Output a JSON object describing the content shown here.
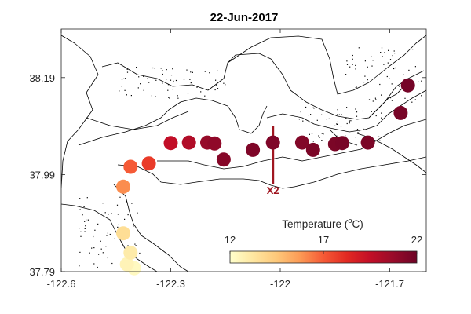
{
  "chart_data": {
    "type": "scatter",
    "title": "22-Jun-2017",
    "xlim": [
      -122.6,
      -121.6
    ],
    "ylim": [
      37.79,
      38.29
    ],
    "xticks": [
      -122.6,
      -122.3,
      -122,
      -121.7
    ],
    "xtick_labels": [
      "-122.6",
      "-122.3",
      "-122",
      "-121.7"
    ],
    "yticks": [
      37.79,
      37.99,
      38.19
    ],
    "ytick_labels": [
      "37.79",
      "37.99",
      "38.19"
    ],
    "grid": false,
    "points": [
      {
        "lon": -122.4,
        "lat": 37.797,
        "temp": 12.3
      },
      {
        "lon": -122.42,
        "lat": 37.805,
        "temp": 12.6
      },
      {
        "lon": -122.41,
        "lat": 37.829,
        "temp": 13.0
      },
      {
        "lon": -122.43,
        "lat": 37.869,
        "temp": 13.6
      },
      {
        "lon": -122.43,
        "lat": 37.965,
        "temp": 16.0
      },
      {
        "lon": -122.41,
        "lat": 38.006,
        "temp": 17.0
      },
      {
        "lon": -122.36,
        "lat": 38.013,
        "temp": 17.8
      },
      {
        "lon": -122.3,
        "lat": 38.055,
        "temp": 19.5
      },
      {
        "lon": -122.25,
        "lat": 38.056,
        "temp": 20.0
      },
      {
        "lon": -122.2,
        "lat": 38.056,
        "temp": 20.8
      },
      {
        "lon": -122.18,
        "lat": 38.054,
        "temp": 21.0
      },
      {
        "lon": -122.155,
        "lat": 38.021,
        "temp": 21.3
      },
      {
        "lon": -122.075,
        "lat": 38.041,
        "temp": 21.5
      },
      {
        "lon": -122.02,
        "lat": 38.056,
        "temp": 21.5
      },
      {
        "lon": -121.94,
        "lat": 38.056,
        "temp": 21.4
      },
      {
        "lon": -121.91,
        "lat": 38.041,
        "temp": 21.6
      },
      {
        "lon": -121.85,
        "lat": 38.053,
        "temp": 21.6
      },
      {
        "lon": -121.83,
        "lat": 38.055,
        "temp": 21.7
      },
      {
        "lon": -121.76,
        "lat": 38.056,
        "temp": 21.6
      },
      {
        "lon": -121.67,
        "lat": 38.117,
        "temp": 21.7
      },
      {
        "lon": -121.65,
        "lat": 38.174,
        "temp": 21.8
      }
    ],
    "annotation": {
      "text": "X2",
      "lon": -122.02,
      "lat_top": 38.09,
      "lat_bottom": 37.97,
      "color": "#a01620"
    },
    "colorbar": {
      "label": "Temperature (",
      "label_sup": "o",
      "label_end": "C)",
      "min": 12,
      "max": 22,
      "ticks": [
        12,
        17,
        22
      ],
      "tick_labels": [
        "12",
        "17",
        "22"
      ],
      "colormap": [
        "#ffffcc",
        "#fee6a0",
        "#fdc87a",
        "#fc9a55",
        "#f55a36",
        "#e22a22",
        "#c20e27",
        "#980b2a",
        "#6e0326"
      ]
    },
    "coastline_color": "#000000"
  }
}
